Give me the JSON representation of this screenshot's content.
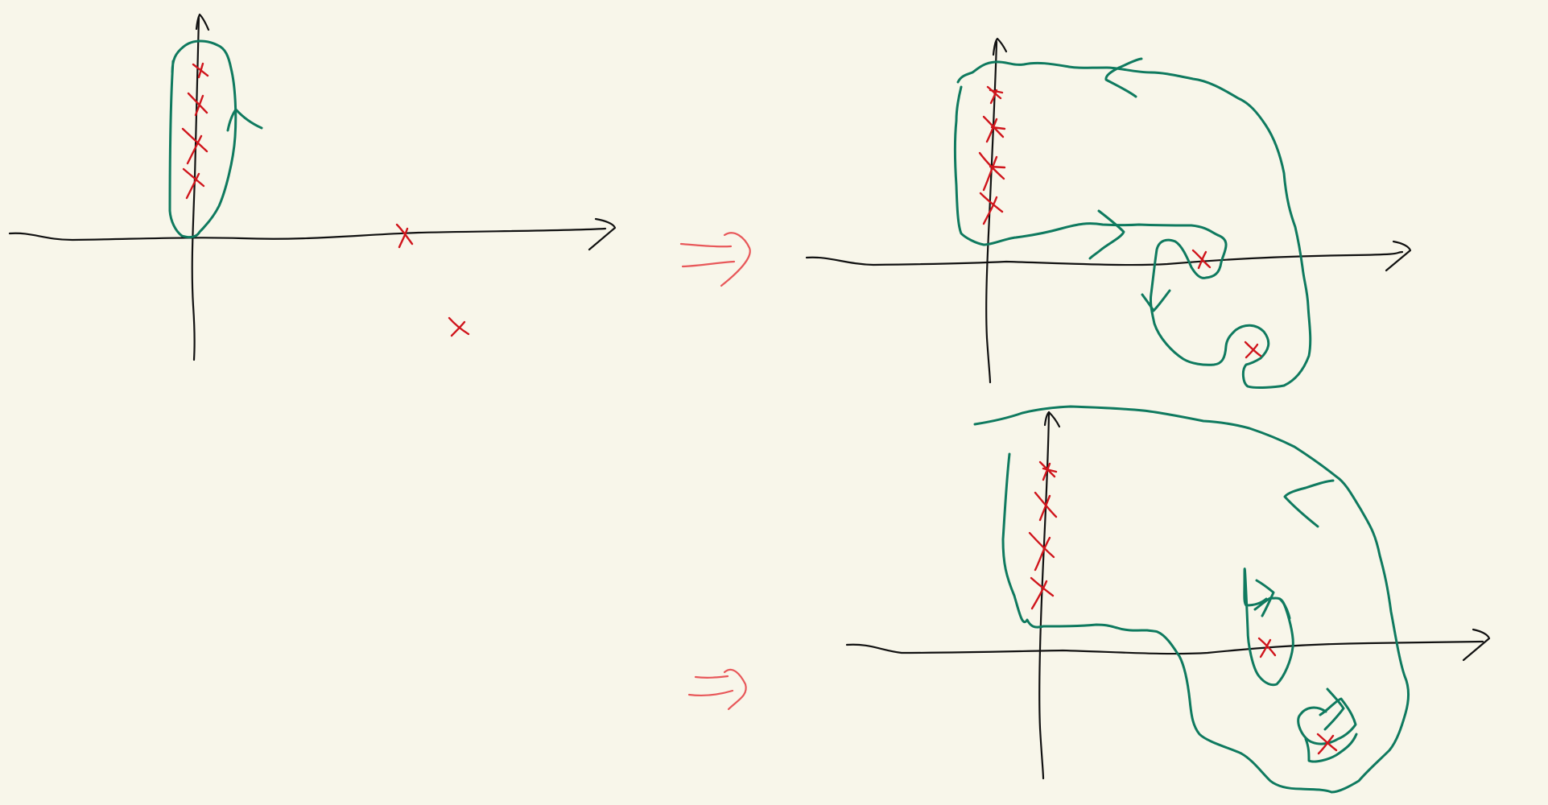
{
  "colors": {
    "background": "#f8f6ea",
    "axis": "#111111",
    "contour": "#0f7a5f",
    "pole": "#d0151c",
    "implies_arrow": "#e8585a"
  },
  "icons": {
    "pole_marker": "cross-icon",
    "implies_marker": "double-arrow-implies-icon",
    "direction_marker": "arrowhead-icon"
  },
  "panels": [
    {
      "id": "panel-initial-contour",
      "description_counts": {
        "poles": 6,
        "arrowheads": 1
      }
    },
    {
      "id": "panel-deformed-contour-top",
      "description_counts": {
        "poles": 6,
        "arrowheads": 3
      }
    },
    {
      "id": "panel-deformed-contour-bottom",
      "description_counts": {
        "poles": 6,
        "arrowheads": 3
      }
    }
  ]
}
